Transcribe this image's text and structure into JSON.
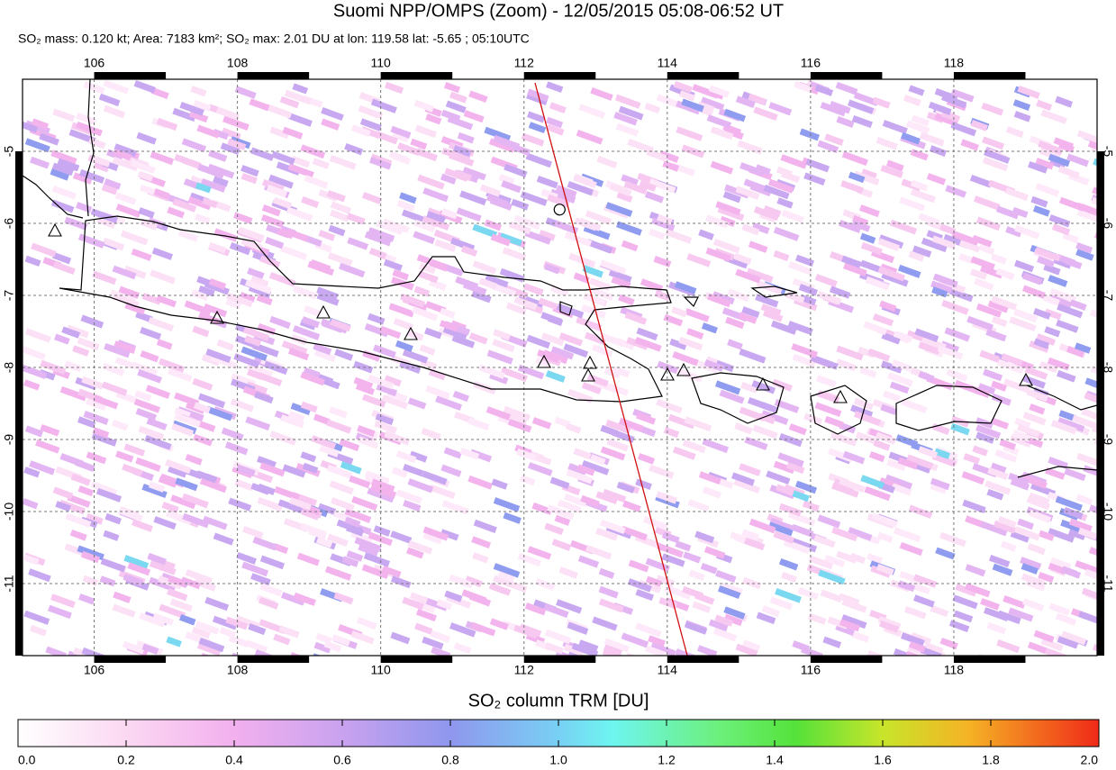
{
  "header": {
    "title": "Suomi NPP/OMPS (Zoom) - 12/05/2015 05:08-06:52 UT",
    "subtitle": "SO₂ mass: 0.120 kt; Area: 7183 km²; SO₂ max: 2.01 DU at lon: 119.58 lat: -5.65 ; 05:10UTC"
  },
  "map": {
    "xlim": [
      105,
      120
    ],
    "ylim": [
      -12,
      -4
    ],
    "xticks": [
      106,
      108,
      110,
      112,
      114,
      116,
      118
    ],
    "yticks": [
      -5,
      -6,
      -7,
      -8,
      -9,
      -10,
      -11
    ],
    "grid": true
  },
  "colorbar": {
    "label": "SO₂ column TRM [DU]",
    "lim": [
      0,
      2
    ],
    "ticks": [
      {
        "value": 0,
        "label": "0.0"
      },
      0.2,
      0.4,
      0.6,
      0.8,
      {
        "value": 1,
        "label": "1.0"
      },
      1.2,
      1.4,
      1.6,
      1.8,
      {
        "value": 2,
        "label": "2.0"
      }
    ]
  }
}
